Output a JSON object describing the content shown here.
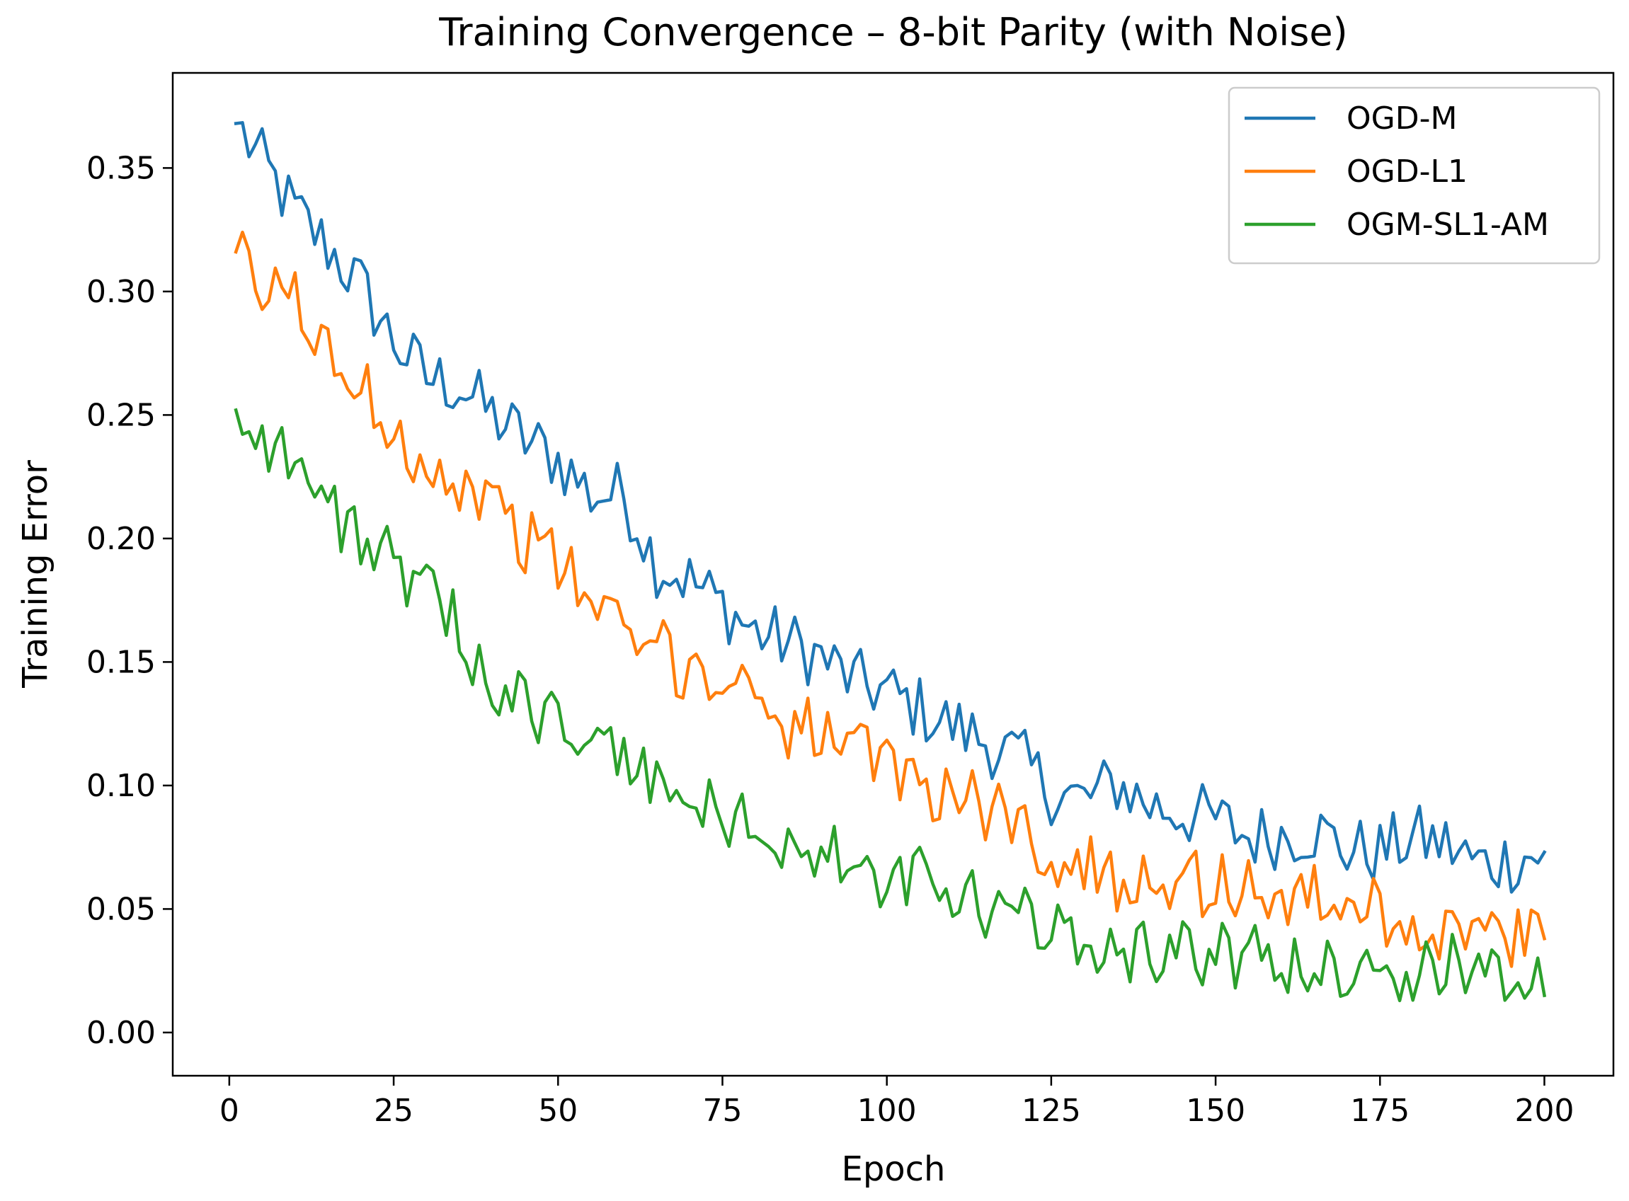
{
  "chart_data": {
    "type": "line",
    "title": "Training Convergence – 8-bit Parity (with Noise)",
    "xlabel": "Epoch",
    "ylabel": "Training Error",
    "xlim": [
      -8.6,
      210.5
    ],
    "ylim": [
      -0.0175,
      0.3885
    ],
    "xticks": [
      0,
      25,
      50,
      75,
      100,
      125,
      150,
      175,
      200
    ],
    "xtick_labels": [
      "0",
      "25",
      "50",
      "75",
      "100",
      "125",
      "150",
      "175",
      "200"
    ],
    "yticks": [
      0.0,
      0.05,
      0.1,
      0.15,
      0.2,
      0.25,
      0.3,
      0.35
    ],
    "ytick_labels": [
      "0.00",
      "0.05",
      "0.10",
      "0.15",
      "0.20",
      "0.25",
      "0.30",
      "0.35"
    ],
    "grid": false,
    "legend_position": "top-right",
    "series": [
      {
        "name": "OGD-M",
        "color": "#1f77b4",
        "x": [
          1,
          5,
          10,
          15,
          20,
          25,
          30,
          35,
          40,
          45,
          50,
          55,
          60,
          65,
          70,
          75,
          80,
          85,
          90,
          95,
          100,
          105,
          110,
          115,
          120,
          125,
          130,
          135,
          140,
          145,
          150,
          155,
          160,
          165,
          170,
          175,
          180,
          185,
          190,
          195,
          200
        ],
        "y": [
          0.368,
          0.352,
          0.332,
          0.318,
          0.302,
          0.28,
          0.265,
          0.262,
          0.25,
          0.24,
          0.232,
          0.218,
          0.218,
          0.19,
          0.183,
          0.173,
          0.162,
          0.158,
          0.152,
          0.142,
          0.138,
          0.131,
          0.124,
          0.118,
          0.111,
          0.098,
          0.094,
          0.101,
          0.092,
          0.089,
          0.086,
          0.079,
          0.08,
          0.082,
          0.074,
          0.073,
          0.079,
          0.076,
          0.068,
          0.07,
          0.073
        ]
      },
      {
        "name": "OGD-L1",
        "color": "#ff7f0e",
        "x": [
          1,
          5,
          10,
          15,
          20,
          25,
          30,
          35,
          40,
          45,
          50,
          55,
          60,
          65,
          70,
          75,
          80,
          85,
          90,
          95,
          100,
          105,
          110,
          115,
          120,
          125,
          130,
          135,
          140,
          145,
          150,
          155,
          160,
          165,
          170,
          175,
          180,
          185,
          190,
          195,
          200
        ],
        "y": [
          0.316,
          0.298,
          0.3,
          0.272,
          0.262,
          0.244,
          0.232,
          0.221,
          0.216,
          0.2,
          0.19,
          0.176,
          0.16,
          0.155,
          0.147,
          0.143,
          0.14,
          0.125,
          0.122,
          0.112,
          0.107,
          0.102,
          0.096,
          0.091,
          0.086,
          0.071,
          0.066,
          0.063,
          0.066,
          0.061,
          0.06,
          0.058,
          0.055,
          0.054,
          0.053,
          0.049,
          0.044,
          0.041,
          0.042,
          0.036,
          0.038
        ]
      },
      {
        "name": "OGM-SL1-AM",
        "color": "#2ca02c",
        "x": [
          1,
          5,
          10,
          15,
          20,
          25,
          30,
          35,
          40,
          45,
          50,
          55,
          60,
          65,
          70,
          75,
          80,
          85,
          90,
          95,
          100,
          105,
          110,
          115,
          120,
          125,
          130,
          135,
          140,
          145,
          150,
          155,
          160,
          165,
          170,
          175,
          180,
          185,
          190,
          195,
          200
        ],
        "y": [
          0.252,
          0.242,
          0.232,
          0.211,
          0.203,
          0.188,
          0.176,
          0.163,
          0.142,
          0.133,
          0.125,
          0.117,
          0.109,
          0.103,
          0.091,
          0.089,
          0.081,
          0.077,
          0.073,
          0.065,
          0.059,
          0.062,
          0.054,
          0.051,
          0.046,
          0.042,
          0.039,
          0.035,
          0.033,
          0.034,
          0.03,
          0.031,
          0.028,
          0.025,
          0.027,
          0.029,
          0.021,
          0.026,
          0.03,
          0.024,
          0.015
        ]
      }
    ]
  }
}
